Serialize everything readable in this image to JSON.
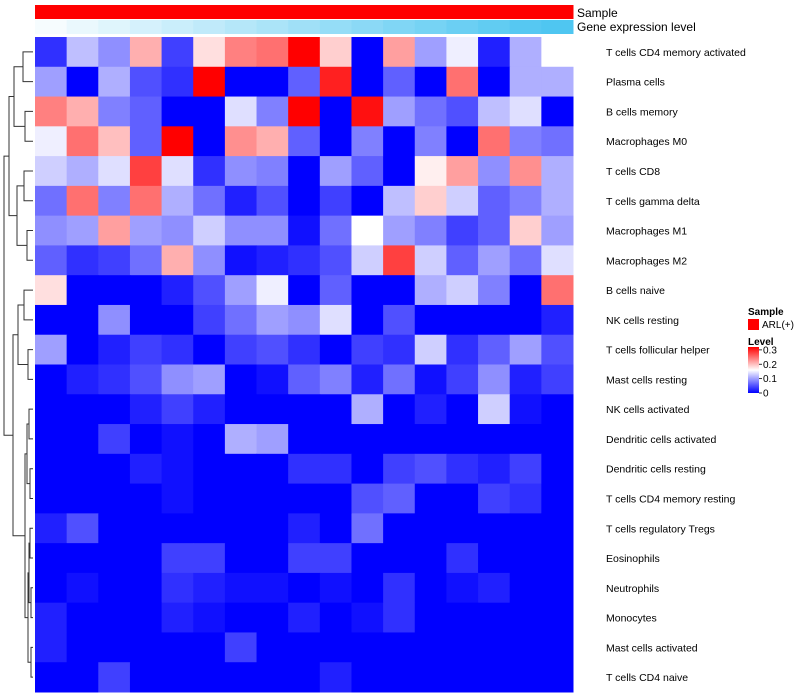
{
  "chart_data": {
    "type": "heatmap",
    "title": "",
    "annotation_tracks": [
      {
        "label": "Sample",
        "color": "#ff0000"
      },
      {
        "label": "Gene expression level",
        "values": [
          0.05,
          0.12,
          0.18,
          0.24,
          0.3,
          0.36,
          0.42,
          0.48,
          0.54,
          0.6,
          0.66,
          0.72,
          0.78,
          0.84,
          0.9,
          0.96,
          1.0
        ]
      }
    ],
    "legend": {
      "sample_title": "Sample",
      "sample_entries": [
        {
          "label": "ARL(+)",
          "color": "#ff0000"
        }
      ],
      "level_title": "Level",
      "level_ticks": [
        "0.3",
        "0.2",
        "0.1",
        "0"
      ],
      "level_tick_values": [
        0.3,
        0.2,
        0.1,
        0
      ],
      "level_range": [
        0,
        0.32
      ]
    },
    "color_scale": {
      "low": "#0000ff",
      "mid": "#ffffff",
      "high": "#ff0000",
      "range": [
        0,
        0.32
      ],
      "midpoint": 0.16
    },
    "rows": [
      "T cells CD4 memory activated",
      "Plasma cells",
      "B cells memory",
      "Macrophages M0",
      "T cells CD8",
      "T cells gamma delta",
      "Macrophages M1",
      "Macrophages M2",
      "B cells naive",
      "NK cells resting",
      "T cells follicular helper",
      "Mast cells resting",
      "NK cells activated",
      "Dendritic cells activated",
      "Dendritic cells resting",
      "T cells CD4 memory resting",
      "T cells regulatory  Tregs",
      "Eosinophils",
      "Neutrophils",
      "Monocytes",
      "Mast cells activated",
      "T cells CD4 naive"
    ],
    "values": [
      [
        0.03,
        0.12,
        0.09,
        0.21,
        0.04,
        0.18,
        0.24,
        0.25,
        0.32,
        0.19,
        0.0,
        0.22,
        0.1,
        0.15,
        0.02,
        0.11,
        0.16
      ],
      [
        0.1,
        0.0,
        0.11,
        0.05,
        0.03,
        0.32,
        0.0,
        0.0,
        0.06,
        0.3,
        0.0,
        0.06,
        0.0,
        0.25,
        0.0,
        0.11,
        0.11
      ],
      [
        0.24,
        0.21,
        0.08,
        0.06,
        0.0,
        0.0,
        0.14,
        0.08,
        0.32,
        0.0,
        0.31,
        0.1,
        0.07,
        0.05,
        0.12,
        0.14,
        0.0
      ],
      [
        0.15,
        0.25,
        0.2,
        0.06,
        0.32,
        0.0,
        0.23,
        0.21,
        0.06,
        0.0,
        0.08,
        0.0,
        0.08,
        0.0,
        0.25,
        0.08,
        0.07
      ],
      [
        0.13,
        0.11,
        0.14,
        0.28,
        0.14,
        0.03,
        0.09,
        0.08,
        0.0,
        0.1,
        0.06,
        0.0,
        0.17,
        0.22,
        0.09,
        0.23,
        0.11
      ],
      [
        0.07,
        0.25,
        0.08,
        0.25,
        0.11,
        0.07,
        0.02,
        0.05,
        0.0,
        0.04,
        0.0,
        0.12,
        0.19,
        0.13,
        0.06,
        0.08,
        0.11
      ],
      [
        0.09,
        0.1,
        0.22,
        0.1,
        0.09,
        0.13,
        0.09,
        0.09,
        0.01,
        0.07,
        0.16,
        0.1,
        0.08,
        0.04,
        0.06,
        0.19,
        0.1
      ],
      [
        0.06,
        0.03,
        0.04,
        0.07,
        0.21,
        0.09,
        0.01,
        0.02,
        0.03,
        0.05,
        0.13,
        0.28,
        0.13,
        0.06,
        0.1,
        0.07,
        0.14
      ],
      [
        0.18,
        0.0,
        0.0,
        0.0,
        0.02,
        0.05,
        0.1,
        0.15,
        0.0,
        0.06,
        0.0,
        0.0,
        0.11,
        0.13,
        0.08,
        0.0,
        0.25
      ],
      [
        0.0,
        0.0,
        0.09,
        0.0,
        0.0,
        0.04,
        0.07,
        0.1,
        0.09,
        0.14,
        0.0,
        0.05,
        0.0,
        0.0,
        0.0,
        0.0,
        0.02
      ],
      [
        0.1,
        0.0,
        0.02,
        0.04,
        0.03,
        0.0,
        0.04,
        0.05,
        0.03,
        0.0,
        0.04,
        0.03,
        0.13,
        0.03,
        0.06,
        0.1,
        0.05
      ],
      [
        0.0,
        0.02,
        0.03,
        0.05,
        0.09,
        0.1,
        0.0,
        0.01,
        0.06,
        0.08,
        0.02,
        0.07,
        0.01,
        0.04,
        0.09,
        0.02,
        0.04
      ],
      [
        0.0,
        0.0,
        0.0,
        0.02,
        0.04,
        0.02,
        0.0,
        0.0,
        0.0,
        0.0,
        0.11,
        0.0,
        0.02,
        0.0,
        0.13,
        0.01,
        0.0
      ],
      [
        0.0,
        0.0,
        0.04,
        0.0,
        0.01,
        0.0,
        0.11,
        0.1,
        0.0,
        0.0,
        0.0,
        0.0,
        0.0,
        0.0,
        0.0,
        0.0,
        0.0
      ],
      [
        0.0,
        0.0,
        0.0,
        0.02,
        0.01,
        0.0,
        0.0,
        0.0,
        0.03,
        0.03,
        0.0,
        0.04,
        0.05,
        0.03,
        0.02,
        0.04,
        0.0
      ],
      [
        0.0,
        0.0,
        0.0,
        0.0,
        0.01,
        0.0,
        0.0,
        0.0,
        0.0,
        0.0,
        0.05,
        0.06,
        0.0,
        0.0,
        0.04,
        0.03,
        0.0
      ],
      [
        0.02,
        0.05,
        0.0,
        0.0,
        0.0,
        0.0,
        0.0,
        0.0,
        0.02,
        0.0,
        0.07,
        0.0,
        0.0,
        0.0,
        0.0,
        0.0,
        0.0
      ],
      [
        0.0,
        0.0,
        0.0,
        0.0,
        0.04,
        0.04,
        0.0,
        0.0,
        0.04,
        0.04,
        0.0,
        0.0,
        0.0,
        0.03,
        0.0,
        0.0,
        0.0
      ],
      [
        0.0,
        0.01,
        0.0,
        0.0,
        0.03,
        0.02,
        0.01,
        0.01,
        0.0,
        0.01,
        0.0,
        0.03,
        0.0,
        0.01,
        0.02,
        0.0,
        0.0
      ],
      [
        0.02,
        0.0,
        0.0,
        0.0,
        0.02,
        0.01,
        0.0,
        0.0,
        0.02,
        0.0,
        0.01,
        0.03,
        0.0,
        0.0,
        0.0,
        0.0,
        0.0
      ],
      [
        0.02,
        0.0,
        0.0,
        0.0,
        0.0,
        0.0,
        0.04,
        0.0,
        0.0,
        0.0,
        0.0,
        0.0,
        0.0,
        0.0,
        0.0,
        0.0,
        0.0
      ],
      [
        0.0,
        0.0,
        0.04,
        0.0,
        0.0,
        0.0,
        0.0,
        0.0,
        0.0,
        0.02,
        0.0,
        0.0,
        0.0,
        0.0,
        0.0,
        0.0,
        0.0
      ]
    ],
    "row_dendrogram": true
  }
}
